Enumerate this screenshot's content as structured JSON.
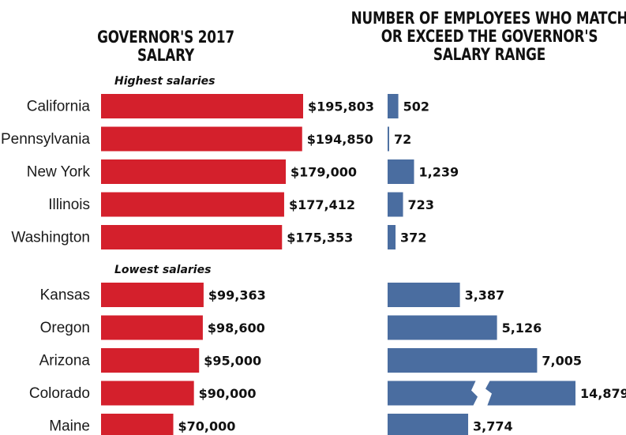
{
  "chart_data": {
    "type": "bar",
    "layout": "paired-horizontal",
    "titles": {
      "left": "GOVERNOR'S 2017 SALARY",
      "right": "NUMBER OF EMPLOYEES WHO MATCH OR EXCEED THE GOVERNOR'S SALARY RANGE"
    },
    "groups": [
      {
        "label": "Highest salaries",
        "rows": [
          {
            "state": "California",
            "salary": 195803,
            "salary_label": "$195,803",
            "employees": 502,
            "employees_label": "502"
          },
          {
            "state": "Pennsylvania",
            "salary": 194850,
            "salary_label": "$194,850",
            "employees": 72,
            "employees_label": "72"
          },
          {
            "state": "New York",
            "salary": 179000,
            "salary_label": "$179,000",
            "employees": 1239,
            "employees_label": "1,239"
          },
          {
            "state": "Illinois",
            "salary": 177412,
            "salary_label": "$177,412",
            "employees": 723,
            "employees_label": "723"
          },
          {
            "state": "Washington",
            "salary": 175353,
            "salary_label": "$175,353",
            "employees": 372,
            "employees_label": "372"
          }
        ]
      },
      {
        "label": "Lowest salaries",
        "rows": [
          {
            "state": "Kansas",
            "salary": 99363,
            "salary_label": "$99,363",
            "employees": 3387,
            "employees_label": "3,387"
          },
          {
            "state": "Oregon",
            "salary": 98600,
            "salary_label": "$98,600",
            "employees": 5126,
            "employees_label": "5,126"
          },
          {
            "state": "Arizona",
            "salary": 95000,
            "salary_label": "$95,000",
            "employees": 7005,
            "employees_label": "7,005"
          },
          {
            "state": "Colorado",
            "salary": 90000,
            "salary_label": "$90,000",
            "employees": 14879,
            "employees_label": "14,879",
            "broken_bar": true
          },
          {
            "state": "Maine",
            "salary": 70000,
            "salary_label": "$70,000",
            "employees": 3774,
            "employees_label": "3,774"
          }
        ]
      }
    ],
    "colors": {
      "salary_bar": "#d4202c",
      "employees_bar": "#4a6da0"
    }
  }
}
